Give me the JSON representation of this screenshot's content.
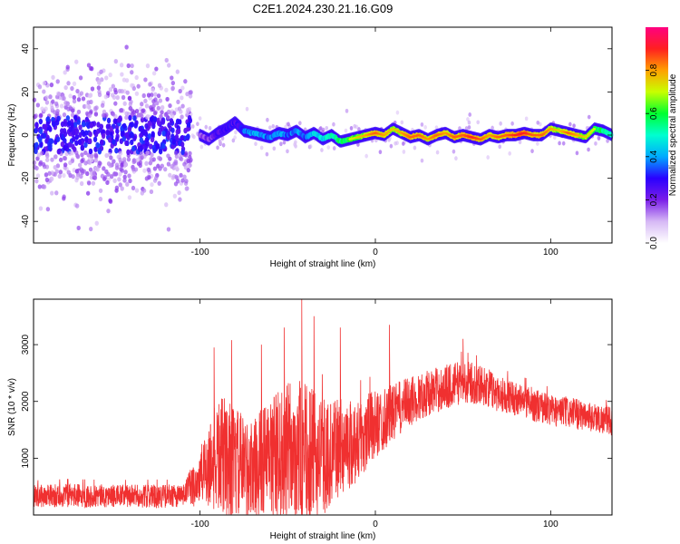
{
  "figure_title": "C2E1.2024.230.21.16.G09",
  "chart_data": [
    {
      "type": "heatmap",
      "title": "",
      "xlabel": "Height of straight line (km)",
      "ylabel": "Frequency (Hz)",
      "xlim": [
        -195,
        135
      ],
      "ylim": [
        -50,
        50
      ],
      "x_ticks": [
        -100,
        0,
        100
      ],
      "y_ticks": [
        -40,
        -20,
        0,
        20,
        40
      ],
      "colorbar": {
        "label": "Normalized spectral amplitude",
        "range": [
          0,
          1
        ],
        "ticks": [
          0.0,
          0.2,
          0.4,
          0.6,
          0.8
        ],
        "colormap": [
          "#ffffff",
          "#d6b8f5",
          "#7a1ee8",
          "#2a00ff",
          "#00aaff",
          "#00ffd0",
          "#00ff30",
          "#c8ff00",
          "#ffa000",
          "#ff2020",
          "#ff0080"
        ]
      },
      "ridge": {
        "x": [
          -100,
          -95,
          -90,
          -85,
          -80,
          -75,
          -70,
          -65,
          -60,
          -55,
          -50,
          -45,
          -40,
          -35,
          -30,
          -25,
          -20,
          -15,
          -10,
          -5,
          0,
          5,
          10,
          15,
          20,
          25,
          30,
          35,
          40,
          45,
          50,
          55,
          60,
          65,
          70,
          75,
          80,
          85,
          90,
          95,
          100,
          105,
          110,
          115,
          120,
          125,
          130,
          135
        ],
        "frequency": [
          0,
          -2,
          1,
          3,
          6,
          2,
          1,
          0,
          -1,
          1,
          0,
          2,
          -1,
          1,
          -2,
          0,
          -3,
          -2,
          -1,
          0,
          1,
          0,
          3,
          1,
          -1,
          0,
          -2,
          0,
          1,
          -1,
          0,
          -1,
          -2,
          0,
          -1,
          0,
          0,
          1,
          0,
          0,
          3,
          2,
          1,
          0,
          -1,
          3,
          2,
          0
        ],
        "amplitude": [
          0.25,
          0.3,
          0.35,
          0.4,
          0.35,
          0.45,
          0.5,
          0.5,
          0.45,
          0.5,
          0.45,
          0.5,
          0.45,
          0.55,
          0.55,
          0.6,
          0.65,
          0.7,
          0.75,
          0.8,
          0.85,
          0.8,
          0.75,
          0.8,
          0.85,
          0.85,
          0.8,
          0.85,
          0.8,
          0.85,
          0.85,
          0.9,
          0.85,
          0.8,
          0.85,
          0.85,
          0.9,
          0.9,
          0.85,
          0.85,
          0.8,
          0.75,
          0.85,
          0.8,
          0.75,
          0.7,
          0.65,
          0.6
        ]
      },
      "noise_region": {
        "x_range": [
          -195,
          -105
        ],
        "frequency_spread": 50
      }
    },
    {
      "type": "line",
      "title": "",
      "xlabel": "Height of straight line (km)",
      "ylabel": "SNR (10 * v/v)",
      "xlim": [
        -195,
        135
      ],
      "ylim": [
        0,
        3800
      ],
      "x_ticks": [
        -100,
        0,
        100
      ],
      "y_ticks": [
        1000,
        2000,
        3000
      ],
      "color": "#f03030",
      "envelope": {
        "x": [
          -195,
          -175,
          -150,
          -125,
          -110,
          -100,
          -95,
          -90,
          -85,
          -80,
          -75,
          -70,
          -65,
          -60,
          -55,
          -50,
          -45,
          -40,
          -35,
          -30,
          -25,
          -20,
          -15,
          -10,
          -5,
          0,
          10,
          20,
          30,
          40,
          50,
          60,
          70,
          80,
          90,
          100,
          110,
          120,
          135
        ],
        "mean": [
          330,
          340,
          335,
          330,
          340,
          650,
          900,
          1000,
          1050,
          900,
          850,
          800,
          950,
          1000,
          1050,
          1100,
          1150,
          1100,
          1050,
          1000,
          1100,
          1200,
          1250,
          1300,
          1450,
          1600,
          1800,
          2000,
          2150,
          2250,
          2350,
          2300,
          2150,
          2050,
          1950,
          1850,
          1800,
          1750,
          1650
        ],
        "spread": [
          200,
          210,
          200,
          210,
          200,
          500,
          800,
          1000,
          1100,
          1000,
          900,
          850,
          950,
          1100,
          1200,
          1250,
          1300,
          1200,
          1150,
          1050,
          900,
          850,
          800,
          750,
          700,
          600,
          500,
          450,
          400,
          400,
          380,
          350,
          330,
          300,
          300,
          280,
          280,
          260,
          250
        ]
      },
      "spikes": [
        {
          "x": -92,
          "y": 2950
        },
        {
          "x": -82,
          "y": 3080
        },
        {
          "x": -65,
          "y": 3000
        },
        {
          "x": -52,
          "y": 3300
        },
        {
          "x": -42,
          "y": 3800
        },
        {
          "x": -35,
          "y": 3500
        },
        {
          "x": -20,
          "y": 3300
        },
        {
          "x": 8,
          "y": 3350
        },
        {
          "x": 50,
          "y": 3100
        }
      ]
    }
  ]
}
